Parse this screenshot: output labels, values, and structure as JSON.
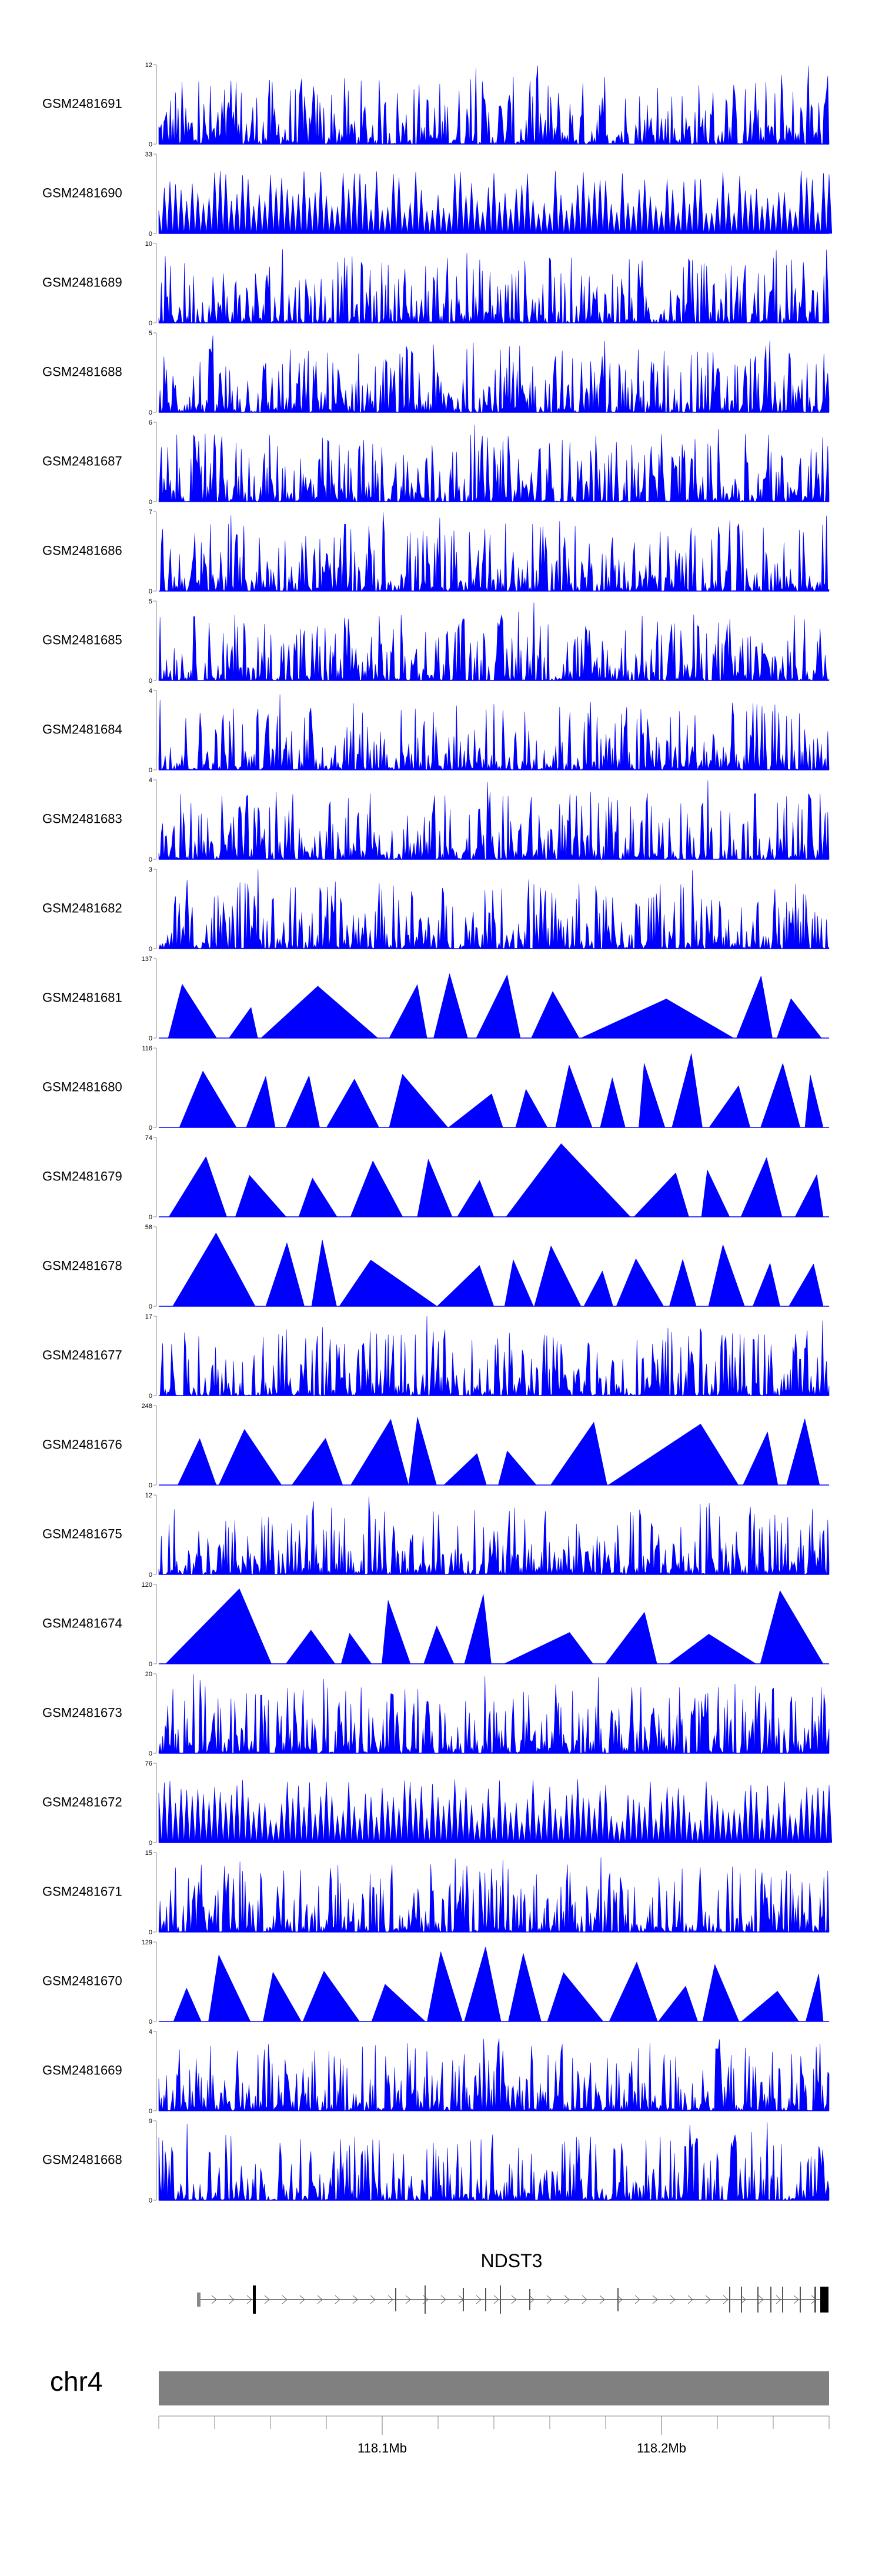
{
  "chart_data": {
    "type": "area",
    "description_hidden": "",
    "series": [
      {
        "name": "GSM2481691",
        "ymax": "12",
        "ymin": "0",
        "values_profile": "dense",
        "peak_positions": [
          0.46,
          0.56
        ]
      },
      {
        "name": "GSM2481690",
        "ymax": "33",
        "ymin": "0",
        "values_profile": "spikes"
      },
      {
        "name": "GSM2481689",
        "ymax": "10",
        "ymin": "0",
        "values_profile": "dense"
      },
      {
        "name": "GSM2481688",
        "ymax": "5",
        "ymin": "0",
        "values_profile": "dense"
      },
      {
        "name": "GSM2481687",
        "ymax": "6",
        "ymin": "0",
        "values_profile": "dense"
      },
      {
        "name": "GSM2481686",
        "ymax": "7",
        "ymin": "0",
        "values_profile": "dense"
      },
      {
        "name": "GSM2481685",
        "ymax": "5",
        "ymin": "0",
        "values_profile": "dense"
      },
      {
        "name": "GSM2481684",
        "ymax": "4",
        "ymin": "0",
        "values_profile": "dense"
      },
      {
        "name": "GSM2481683",
        "ymax": "4",
        "ymin": "0",
        "values_profile": "dense"
      },
      {
        "name": "GSM2481682",
        "ymax": "3",
        "ymin": "0",
        "values_profile": "dense"
      },
      {
        "name": "GSM2481681",
        "ymax": "137",
        "ymin": "0",
        "values_profile": "triangles"
      },
      {
        "name": "GSM2481680",
        "ymax": "116",
        "ymin": "0",
        "values_profile": "triangles"
      },
      {
        "name": "GSM2481679",
        "ymax": "74",
        "ymin": "0",
        "values_profile": "triangles"
      },
      {
        "name": "GSM2481678",
        "ymax": "58",
        "ymin": "0",
        "values_profile": "triangles"
      },
      {
        "name": "GSM2481677",
        "ymax": "17",
        "ymin": "0",
        "values_profile": "dense"
      },
      {
        "name": "GSM2481676",
        "ymax": "248",
        "ymin": "0",
        "values_profile": "triangles"
      },
      {
        "name": "GSM2481675",
        "ymax": "12",
        "ymin": "0",
        "values_profile": "dense"
      },
      {
        "name": "GSM2481674",
        "ymax": "120",
        "ymin": "0",
        "values_profile": "triangles"
      },
      {
        "name": "GSM2481673",
        "ymax": "20",
        "ymin": "0",
        "values_profile": "dense"
      },
      {
        "name": "GSM2481672",
        "ymax": "76",
        "ymin": "0",
        "values_profile": "spikes"
      },
      {
        "name": "GSM2481671",
        "ymax": "15",
        "ymin": "0",
        "values_profile": "dense"
      },
      {
        "name": "GSM2481670",
        "ymax": "129",
        "ymin": "0",
        "values_profile": "triangles"
      },
      {
        "name": "GSM2481669",
        "ymax": "4",
        "ymin": "0",
        "values_profile": "dense"
      },
      {
        "name": "GSM2481668",
        "ymax": "9",
        "ymin": "0",
        "values_profile": "dense"
      }
    ],
    "gene": {
      "name": "NDST3"
    },
    "chromosome": "chr4",
    "x_ticks": [
      {
        "label": "118.1Mb",
        "value": 118.1
      },
      {
        "label": "118.2Mb",
        "value": 118.2
      }
    ],
    "x_range": [
      118.02,
      118.26
    ],
    "colors": {
      "track": "#0000ff",
      "ideogram": "#808080",
      "axis": "#888888"
    }
  }
}
